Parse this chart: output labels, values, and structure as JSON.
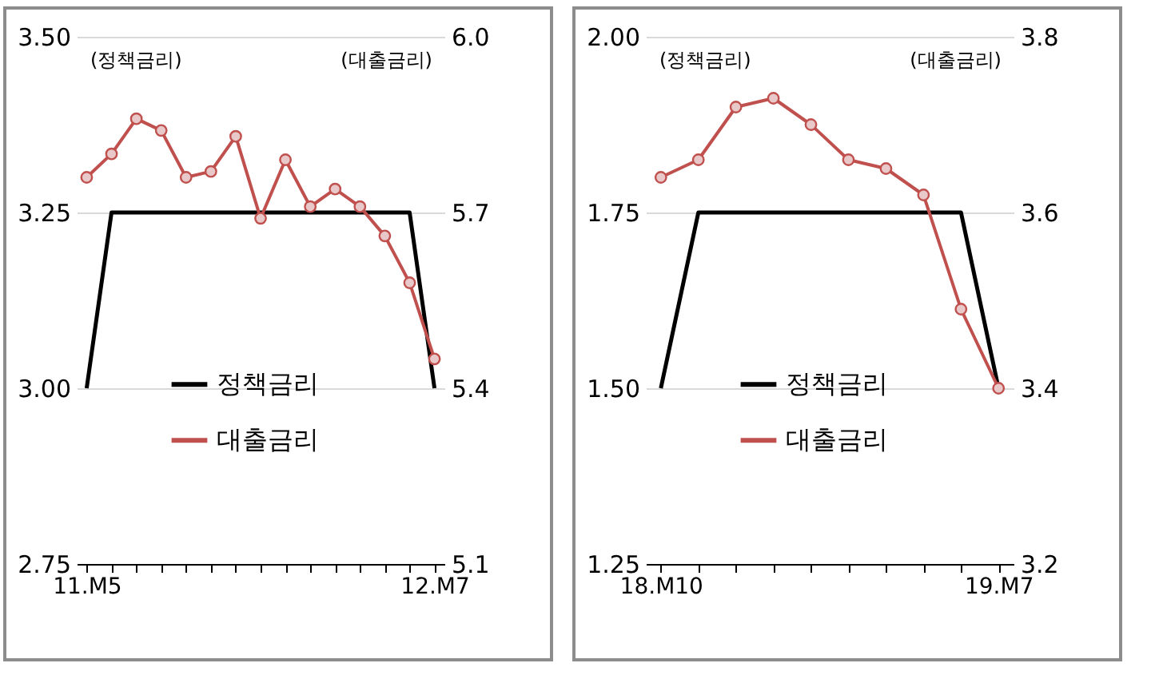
{
  "chart_data": [
    {
      "type": "line",
      "ylabel": "(정책금리)",
      "y2label": "(대출금리)",
      "categories": [
        "11.M5",
        null,
        null,
        null,
        null,
        null,
        null,
        null,
        null,
        null,
        null,
        null,
        null,
        null,
        "12.M7"
      ],
      "series": [
        {
          "name": "정책금리",
          "color": "#000000",
          "marker": "none",
          "values": [
            3.0,
            3.25,
            3.25,
            3.25,
            3.25,
            3.25,
            3.25,
            3.25,
            3.25,
            3.25,
            3.25,
            3.25,
            3.25,
            3.25,
            3.0
          ]
        },
        {
          "name": "대출금리",
          "color": "#c0504d",
          "marker": "circle",
          "axis": "y2",
          "values": [
            5.76,
            5.8,
            5.86,
            5.84,
            5.76,
            5.77,
            5.83,
            5.69,
            5.79,
            5.71,
            5.74,
            5.71,
            5.66,
            5.58,
            5.45
          ]
        }
      ],
      "ylim": [
        2.75,
        3.5
      ],
      "yticks": [
        {
          "value": 2.75,
          "label": "2.75"
        },
        {
          "value": 3,
          "label": "3.00"
        },
        {
          "value": 3.25,
          "label": "3.25"
        },
        {
          "value": 3.5,
          "label": "3.50"
        }
      ],
      "y2lim": [
        5.1,
        6.0
      ],
      "y2ticks": [
        {
          "value": 5.1,
          "label": "5.1"
        },
        {
          "value": 5.4,
          "label": "5.4"
        },
        {
          "value": 5.7,
          "label": "5.7"
        },
        {
          "value": 6,
          "label": "6.0"
        }
      ],
      "grid": "y",
      "legend": "bottom"
    },
    {
      "type": "line",
      "ylabel": "(정책금리)",
      "y2label": "(대출금리)",
      "categories": [
        "18.M10",
        null,
        null,
        null,
        null,
        null,
        null,
        null,
        null,
        "19.M7"
      ],
      "series": [
        {
          "name": "정책금리",
          "color": "#000000",
          "marker": "none",
          "values": [
            1.5,
            1.75,
            1.75,
            1.75,
            1.75,
            1.75,
            1.75,
            1.75,
            1.75,
            1.5
          ]
        },
        {
          "name": "대출금리",
          "color": "#c0504d",
          "marker": "circle",
          "axis": "y2",
          "values": [
            3.64,
            3.66,
            3.72,
            3.73,
            3.7,
            3.66,
            3.65,
            3.62,
            3.49,
            3.4
          ]
        }
      ],
      "ylim": [
        1.25,
        2.0
      ],
      "yticks": [
        {
          "value": 1.25,
          "label": "1.25"
        },
        {
          "value": 1.5,
          "label": "1.50"
        },
        {
          "value": 1.75,
          "label": "1.75"
        },
        {
          "value": 2,
          "label": "2.00"
        }
      ],
      "y2lim": [
        3.2,
        3.8
      ],
      "y2ticks": [
        {
          "value": 3.2,
          "label": "3.2"
        },
        {
          "value": 3.4,
          "label": "3.4"
        },
        {
          "value": 3.6,
          "label": "3.6"
        },
        {
          "value": 3.8,
          "label": "3.8"
        }
      ],
      "grid": "y",
      "legend": "bottom"
    }
  ]
}
